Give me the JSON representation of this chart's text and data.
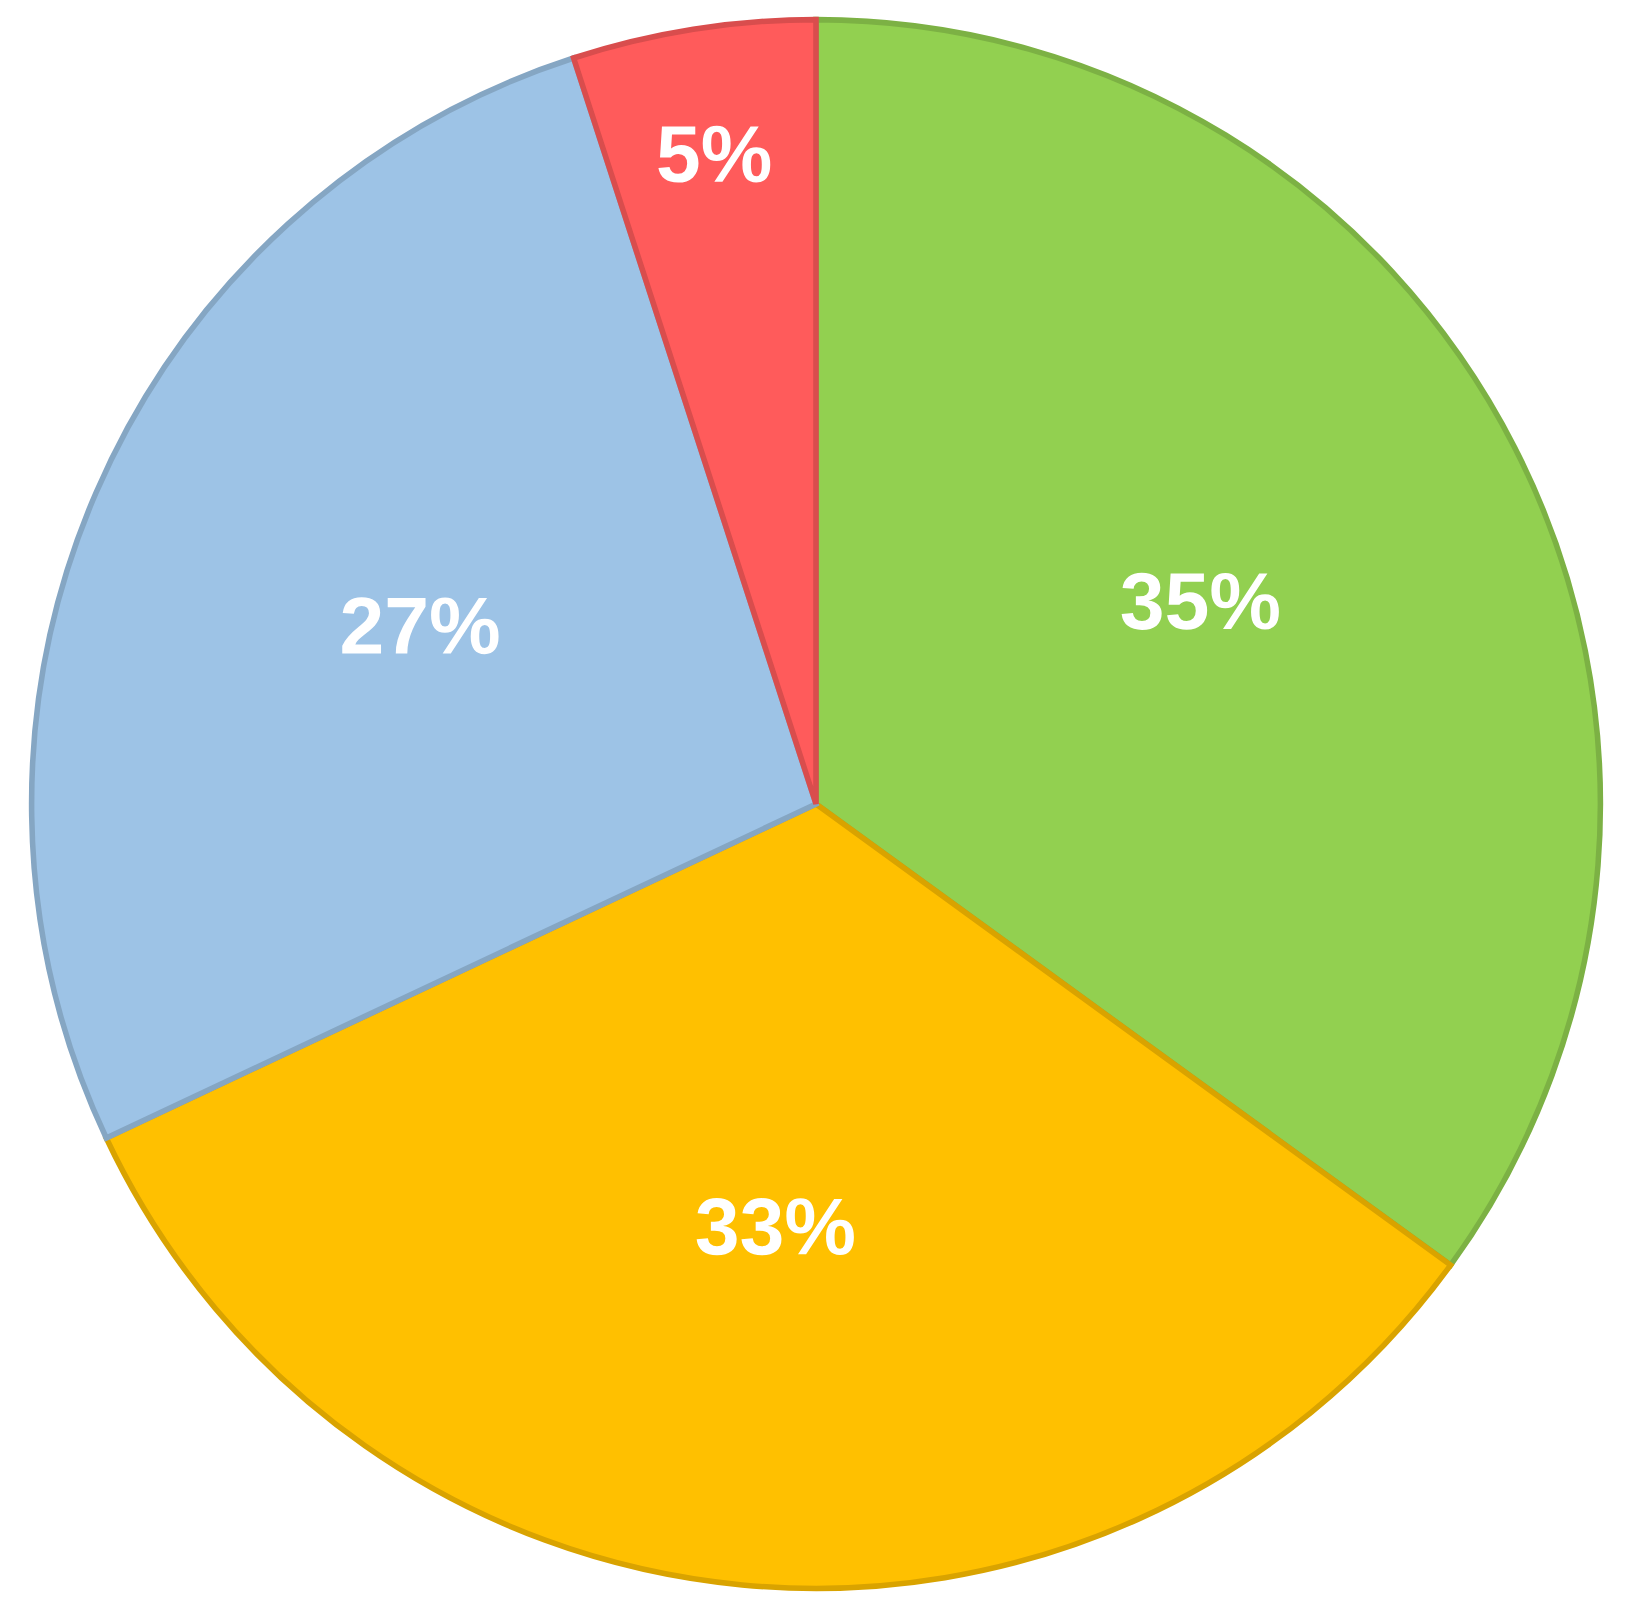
{
  "chart_data": {
    "type": "pie",
    "categories": [
      null,
      null,
      null,
      null
    ],
    "values": [
      35,
      33,
      27,
      5
    ],
    "colors": [
      "#92d050",
      "#ffc000",
      "#9dc3e6",
      "#ff5b5b"
    ],
    "value_labels": [
      "35%",
      "33%",
      "27%",
      "5%"
    ]
  }
}
